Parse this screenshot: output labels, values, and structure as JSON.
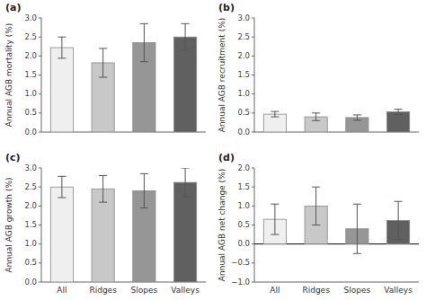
{
  "chart_data": [
    {
      "type": "bar",
      "title": "(a)",
      "y_label": "Annual AGB mortality (%)",
      "categories": [
        "All",
        "Ridges",
        "Slopes",
        "Valleys"
      ],
      "values": [
        2.22,
        1.82,
        2.35,
        2.5
      ],
      "errors": [
        0.28,
        0.38,
        0.5,
        0.35
      ],
      "colors": [
        "#efefef",
        "#c8c8c8",
        "#969696",
        "#606060"
      ],
      "ylim": [
        0.0,
        3.0
      ],
      "yticks": [
        {
          "value": 0.0,
          "label": "0.0"
        },
        0.5,
        {
          "value": 1.0,
          "label": "1.0"
        },
        1.5,
        {
          "value": 2.0,
          "label": "2.0"
        },
        2.5,
        {
          "value": 3.0,
          "label": "3.0"
        }
      ],
      "tick_labels": "y"
    },
    {
      "type": "bar",
      "title": "(b)",
      "y_label": "Annual AGB recruitment (%)",
      "categories": [
        "All",
        "Ridges",
        "Slopes",
        "Valleys"
      ],
      "values": [
        0.47,
        0.4,
        0.38,
        0.53
      ],
      "errors": [
        0.07,
        0.1,
        0.07,
        0.07
      ],
      "colors": [
        "#efefef",
        "#c8c8c8",
        "#969696",
        "#606060"
      ],
      "ylim": [
        0.0,
        3.0
      ],
      "yticks": [
        {
          "value": 0.0,
          "label": "0.0"
        },
        0.5,
        {
          "value": 1.0,
          "label": "1.0"
        },
        1.5,
        {
          "value": 2.0,
          "label": "2.0"
        },
        2.5,
        {
          "value": 3.0,
          "label": "3.0"
        }
      ],
      "tick_labels": "y"
    },
    {
      "type": "bar",
      "title": "(c)",
      "y_label": "Annual AGB growth (%)",
      "categories": [
        "All",
        "Ridges",
        "Slopes",
        "Valleys"
      ],
      "values": [
        2.5,
        2.45,
        2.4,
        2.62
      ],
      "errors": [
        0.28,
        0.35,
        0.45,
        0.38
      ],
      "colors": [
        "#efefef",
        "#c8c8c8",
        "#969696",
        "#606060"
      ],
      "ylim": [
        0.0,
        3.0
      ],
      "yticks": [
        {
          "value": 0.0,
          "label": "0.0"
        },
        0.5,
        {
          "value": 1.0,
          "label": "1.0"
        },
        1.5,
        {
          "value": 2.0,
          "label": "2.0"
        },
        2.5,
        {
          "value": 3.0,
          "label": "3.0"
        }
      ]
    },
    {
      "type": "bar",
      "title": "(d)",
      "y_label": "Annual AGB net change (%)",
      "categories": [
        "All",
        "Ridges",
        "Slopes",
        "Valleys"
      ],
      "values": [
        0.65,
        1.0,
        0.4,
        0.62
      ],
      "errors": [
        0.4,
        0.5,
        0.65,
        0.5
      ],
      "colors": [
        "#efefef",
        "#c8c8c8",
        "#969696",
        "#606060"
      ],
      "ylim": [
        -1.0,
        2.0
      ],
      "yticks": [
        {
          "value": -1.0,
          "label": "−1.0"
        },
        {
          "value": -0.5,
          "label": "−0.5"
        },
        {
          "value": 0.0,
          "label": "0.0"
        },
        0.5,
        {
          "value": 1.0,
          "label": "1.0"
        },
        1.5,
        {
          "value": 2.0,
          "label": "2.0"
        }
      ]
    }
  ]
}
